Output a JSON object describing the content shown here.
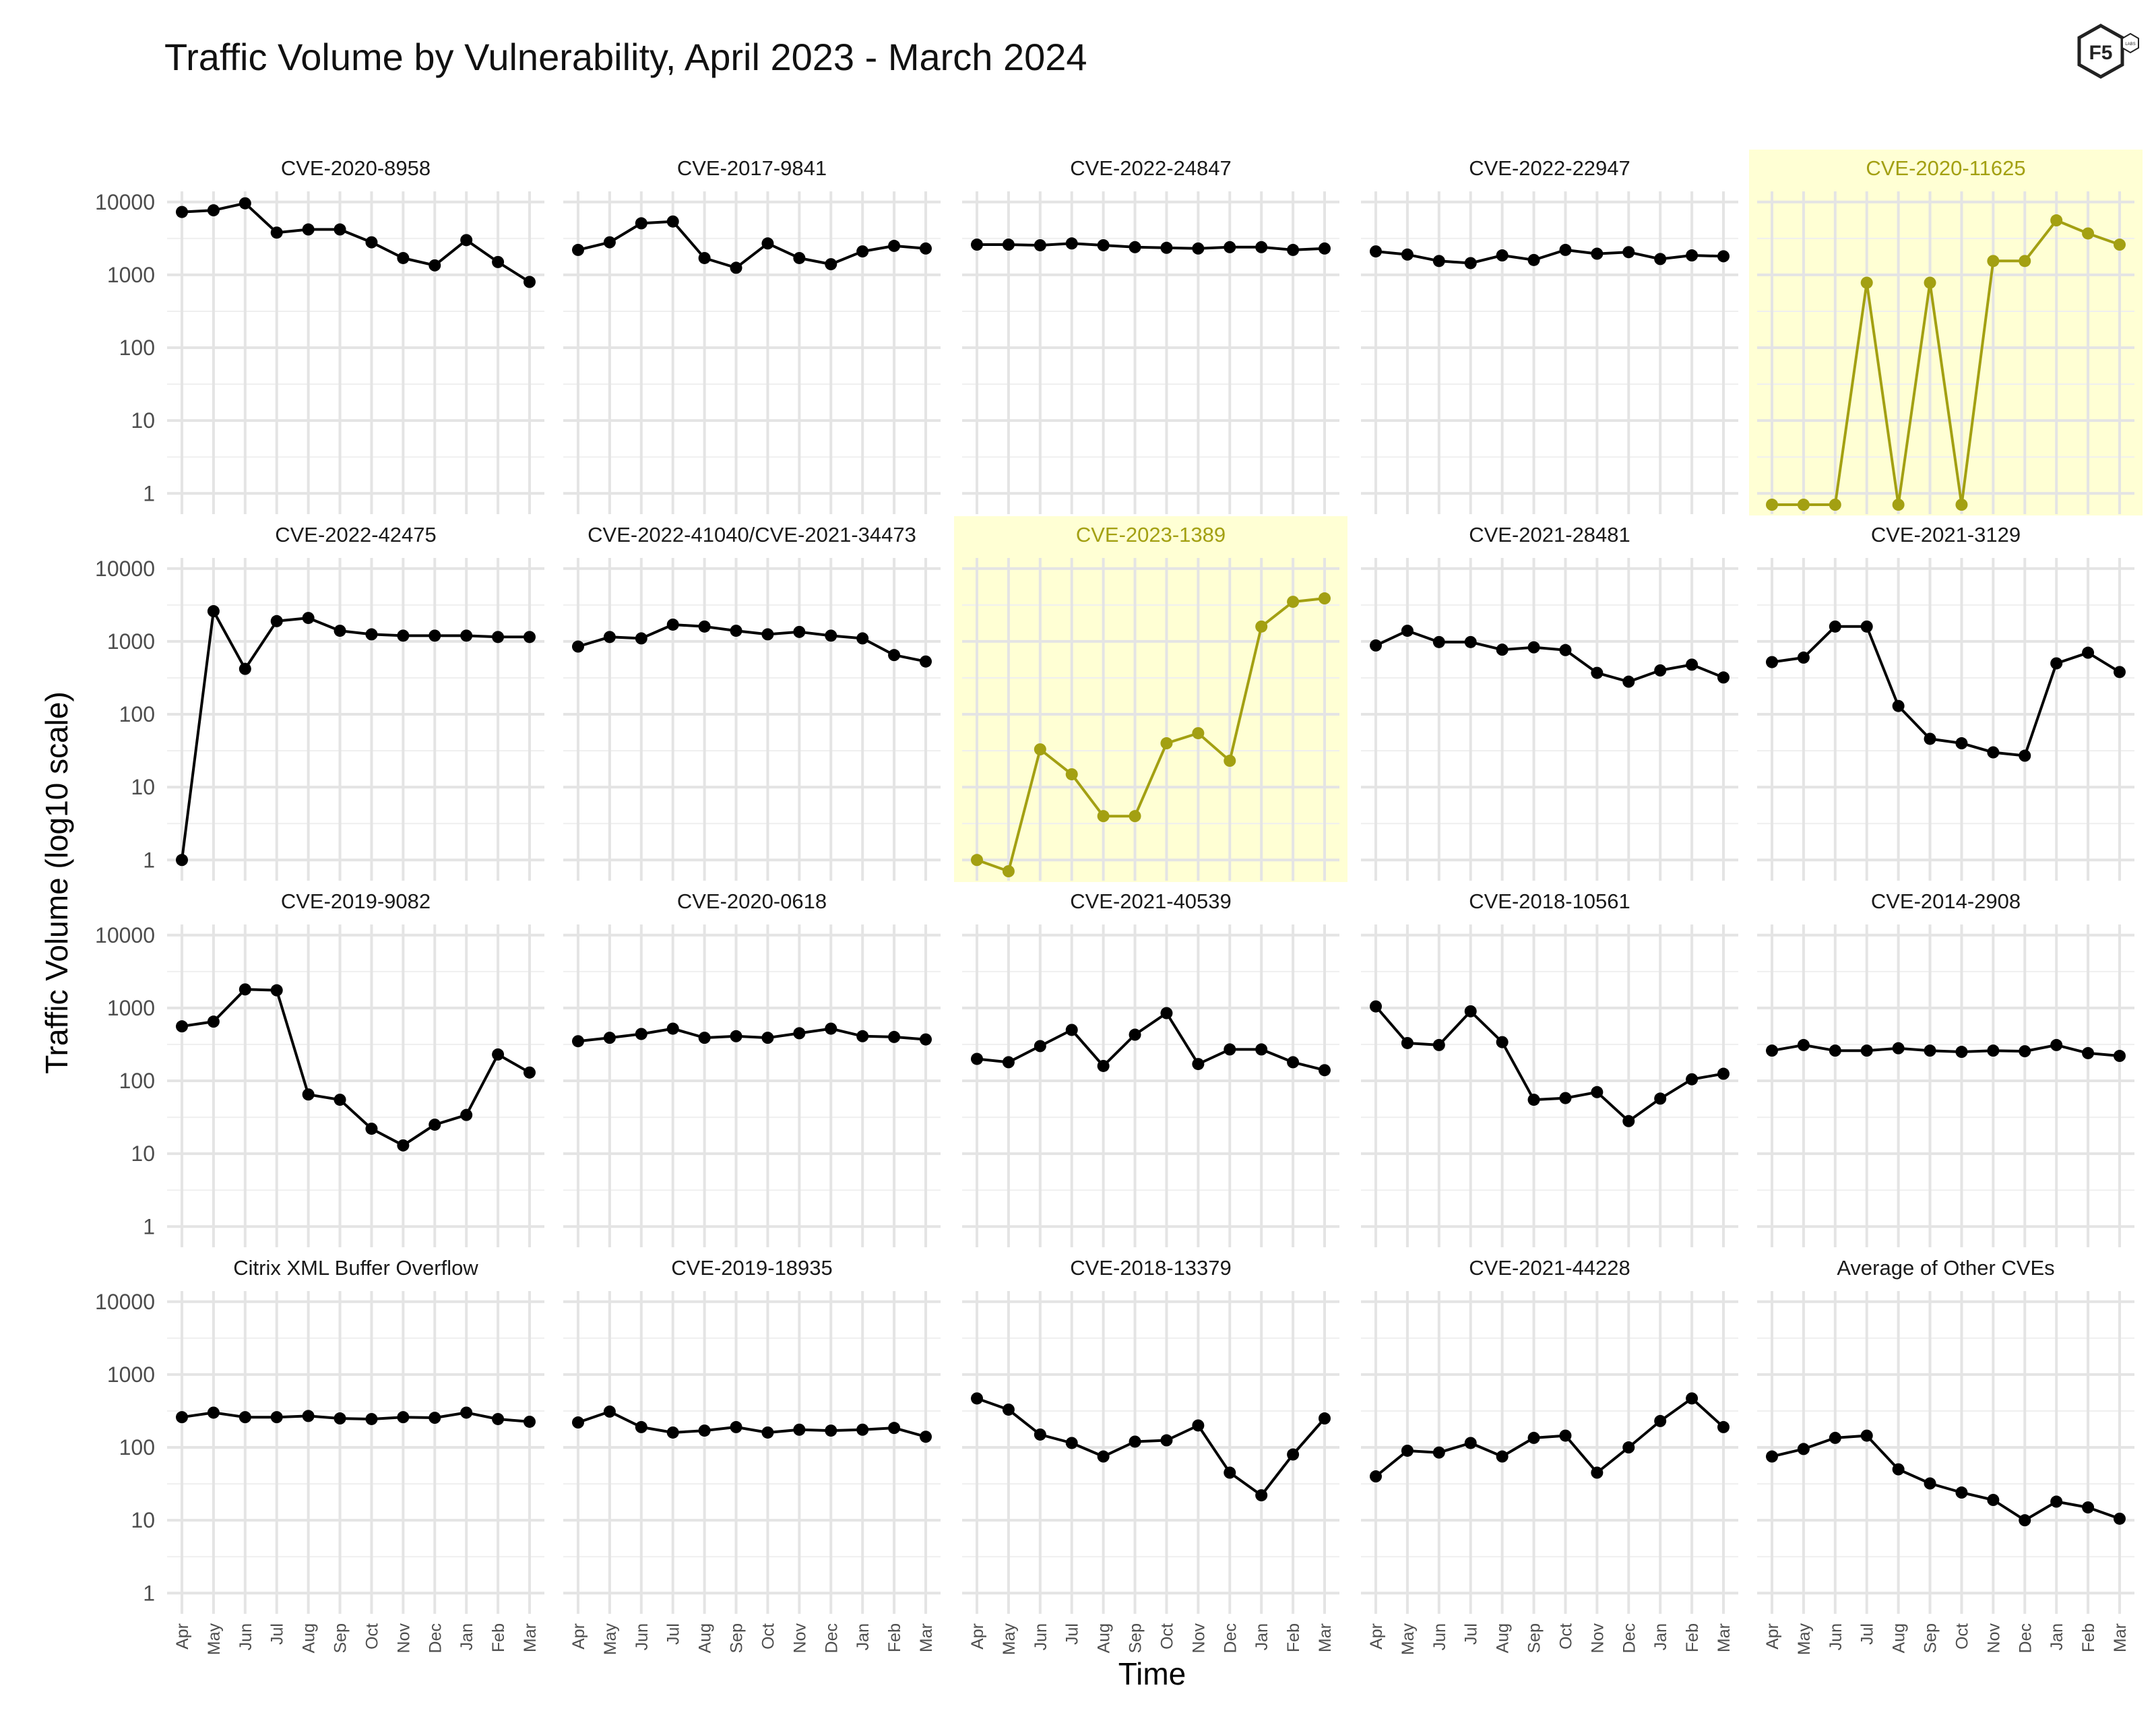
{
  "title": "Traffic Volume by Vulnerability, April 2023 - March 2024",
  "logo": {
    "text": "F5",
    "subtext": "LABS"
  },
  "chart_data": {
    "type": "line",
    "layout": "small-multiples",
    "title": "Traffic Volume by Vulnerability, April 2023 - March 2024",
    "xlabel": "Time",
    "ylabel": "Traffic Volume (log10 scale)",
    "yscale": "log10",
    "ylim": [
      0.7,
      14000
    ],
    "yticks": [
      1,
      10,
      100,
      1000,
      10000
    ],
    "ytick_labels": [
      "1",
      "10",
      "100",
      "1000",
      "10000"
    ],
    "categories": [
      "Apr",
      "May",
      "Jun",
      "Jul",
      "Aug",
      "Sep",
      "Oct",
      "Nov",
      "Dec",
      "Jan",
      "Feb",
      "Mar"
    ],
    "grid": true,
    "colors": {
      "default": "#000000",
      "highlight": "#a3a012",
      "highlight_bg": "#ffffd4"
    },
    "panels": [
      {
        "name": "CVE-2020-8958",
        "highlight": false,
        "values": [
          7300,
          7700,
          9600,
          3800,
          4200,
          4200,
          2800,
          1700,
          1350,
          3000,
          1500,
          800
        ]
      },
      {
        "name": "CVE-2017-9841",
        "highlight": false,
        "values": [
          2200,
          2800,
          5100,
          5400,
          1700,
          1250,
          2700,
          1700,
          1400,
          2100,
          2500,
          2300
        ]
      },
      {
        "name": "CVE-2022-24847",
        "highlight": false,
        "values": [
          2600,
          2600,
          2550,
          2700,
          2550,
          2400,
          2350,
          2300,
          2400,
          2400,
          2200,
          2300
        ]
      },
      {
        "name": "CVE-2022-22947",
        "highlight": false,
        "values": [
          2100,
          1900,
          1550,
          1450,
          1850,
          1600,
          2200,
          1950,
          2050,
          1650,
          1850,
          1800
        ]
      },
      {
        "name": "CVE-2020-11625",
        "highlight": true,
        "values": [
          0.7,
          0.7,
          0.7,
          780,
          0.7,
          780,
          0.7,
          1550,
          1550,
          5600,
          3700,
          2600
        ]
      },
      {
        "name": "CVE-2022-42475",
        "highlight": false,
        "values": [
          1,
          2600,
          420,
          1900,
          2100,
          1400,
          1250,
          1200,
          1200,
          1200,
          1150,
          1150
        ]
      },
      {
        "name": "CVE-2022-41040/CVE-2021-34473",
        "highlight": false,
        "values": [
          850,
          1150,
          1100,
          1700,
          1600,
          1400,
          1250,
          1350,
          1200,
          1100,
          650,
          530
        ]
      },
      {
        "name": "CVE-2023-1389",
        "highlight": true,
        "values": [
          1,
          0.7,
          33,
          15,
          4,
          4,
          40,
          55,
          23,
          1600,
          3500,
          3900
        ]
      },
      {
        "name": "CVE-2021-28481",
        "highlight": false,
        "values": [
          880,
          1400,
          980,
          980,
          770,
          830,
          760,
          370,
          280,
          400,
          480,
          320
        ]
      },
      {
        "name": "CVE-2021-3129",
        "highlight": false,
        "values": [
          520,
          600,
          1600,
          1600,
          130,
          46,
          40,
          30,
          27,
          500,
          700,
          380
        ]
      },
      {
        "name": "CVE-2019-9082",
        "highlight": false,
        "values": [
          560,
          650,
          1800,
          1750,
          65,
          55,
          22,
          13,
          25,
          34,
          230,
          130
        ]
      },
      {
        "name": "CVE-2020-0618",
        "highlight": false,
        "values": [
          350,
          390,
          440,
          520,
          390,
          410,
          390,
          450,
          520,
          410,
          400,
          370
        ]
      },
      {
        "name": "CVE-2021-40539",
        "highlight": false,
        "values": [
          200,
          180,
          300,
          500,
          160,
          430,
          850,
          170,
          270,
          270,
          180,
          140
        ]
      },
      {
        "name": "CVE-2018-10561",
        "highlight": false,
        "values": [
          1050,
          330,
          310,
          900,
          340,
          55,
          58,
          70,
          28,
          57,
          105,
          125
        ]
      },
      {
        "name": "CVE-2014-2908",
        "highlight": false,
        "values": [
          260,
          310,
          260,
          260,
          280,
          260,
          250,
          260,
          255,
          310,
          240,
          220
        ]
      },
      {
        "name": "Citrix XML Buffer Overflow",
        "highlight": false,
        "values": [
          260,
          300,
          260,
          260,
          270,
          250,
          245,
          260,
          255,
          300,
          245,
          225
        ]
      },
      {
        "name": "CVE-2019-18935",
        "highlight": false,
        "values": [
          220,
          310,
          190,
          160,
          170,
          190,
          160,
          175,
          170,
          175,
          185,
          140
        ]
      },
      {
        "name": "CVE-2018-13379",
        "highlight": false,
        "values": [
          470,
          330,
          150,
          115,
          75,
          120,
          125,
          200,
          45,
          22,
          80,
          250
        ]
      },
      {
        "name": "CVE-2021-44228",
        "highlight": false,
        "values": [
          40,
          90,
          85,
          115,
          75,
          135,
          145,
          45,
          100,
          230,
          470,
          190
        ]
      },
      {
        "name": "Average of Other CVEs",
        "highlight": false,
        "values": [
          75,
          95,
          135,
          145,
          50,
          32,
          24,
          19,
          10,
          18,
          15,
          10.5
        ]
      }
    ]
  }
}
